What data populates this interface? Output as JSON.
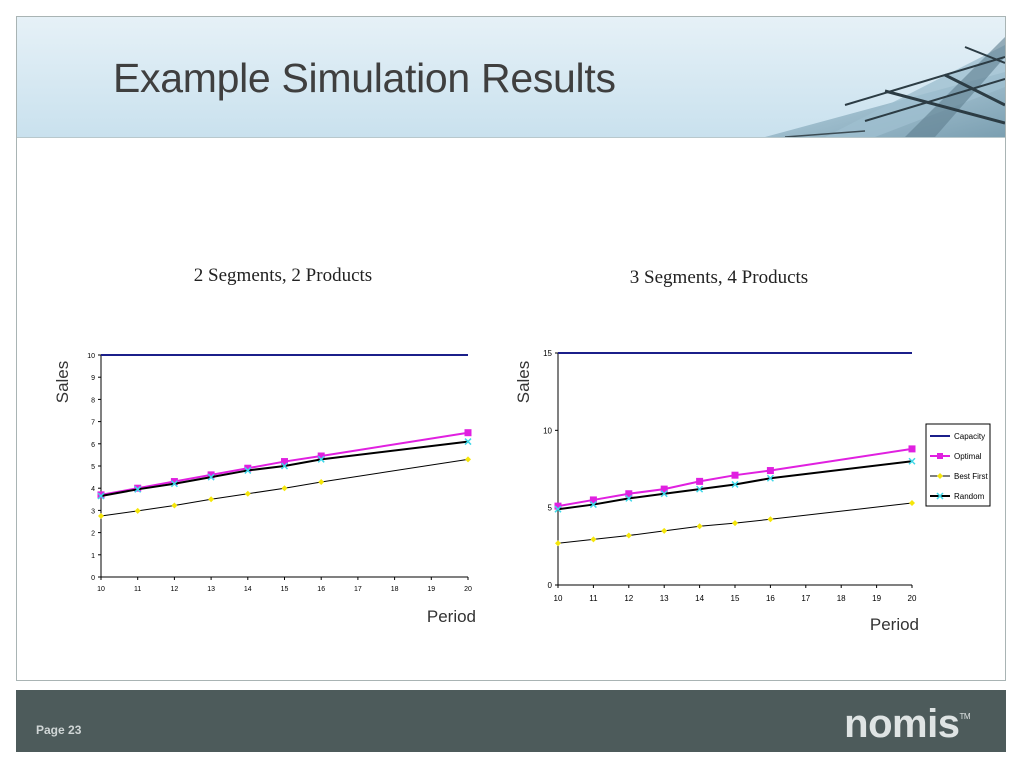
{
  "slide": {
    "title": "Example Simulation Results",
    "page_label": "Page 23",
    "logo_text": "nomis",
    "logo_mark": "TM"
  },
  "colors": {
    "capacity": "#1b1f8a",
    "optimal": "#e020e0",
    "best_first": "#f5e60a",
    "random": "#000000",
    "random_marker": "#3fd8e8",
    "footer": "#4d5b5b",
    "title": "#3f3f3f"
  },
  "legend": [
    "Capacity",
    "Optimal",
    "Best First",
    "Random"
  ],
  "chart_data": [
    {
      "type": "line",
      "title": "2 Segments, 2 Products",
      "xlabel": "Period",
      "ylabel": "Sales",
      "x": [
        10,
        11,
        12,
        13,
        14,
        15,
        16,
        17,
        18,
        19,
        20
      ],
      "xlim": [
        10,
        20
      ],
      "ylim": [
        0,
        10
      ],
      "yticks": [
        0,
        1,
        2,
        3,
        4,
        5,
        6,
        7,
        8,
        9,
        10
      ],
      "legend": "none",
      "series": [
        {
          "name": "Capacity",
          "x": [
            10,
            20
          ],
          "values": [
            10,
            10
          ],
          "marker": "none"
        },
        {
          "name": "Optimal",
          "x": [
            10,
            11,
            12,
            13,
            14,
            15,
            16,
            20
          ],
          "values": [
            3.7,
            4.0,
            4.3,
            4.6,
            4.9,
            5.2,
            5.45,
            6.5
          ],
          "marker": "square"
        },
        {
          "name": "Best First",
          "x": [
            10,
            11,
            12,
            13,
            14,
            15,
            16,
            20
          ],
          "values": [
            2.75,
            2.98,
            3.22,
            3.5,
            3.75,
            4.0,
            4.28,
            5.3
          ],
          "marker": "diamond"
        },
        {
          "name": "Random",
          "x": [
            10,
            11,
            12,
            13,
            14,
            15,
            16,
            20
          ],
          "values": [
            3.65,
            3.95,
            4.2,
            4.5,
            4.8,
            5.0,
            5.3,
            6.1
          ],
          "marker": "x"
        }
      ]
    },
    {
      "type": "line",
      "title": "3 Segments, 4 Products",
      "xlabel": "Period",
      "ylabel": "Sales",
      "x": [
        10,
        11,
        12,
        13,
        14,
        15,
        16,
        17,
        18,
        19,
        20
      ],
      "xlim": [
        10,
        20
      ],
      "ylim": [
        0,
        15
      ],
      "yticks": [
        0,
        5,
        10,
        15
      ],
      "legend": "right",
      "series": [
        {
          "name": "Capacity",
          "x": [
            10,
            20
          ],
          "values": [
            15,
            15
          ],
          "marker": "none"
        },
        {
          "name": "Optimal",
          "x": [
            10,
            11,
            12,
            13,
            14,
            15,
            16,
            20
          ],
          "values": [
            5.1,
            5.5,
            5.9,
            6.2,
            6.7,
            7.1,
            7.4,
            8.8
          ],
          "marker": "square"
        },
        {
          "name": "Best First",
          "x": [
            10,
            11,
            12,
            13,
            14,
            15,
            16,
            20
          ],
          "values": [
            2.7,
            2.95,
            3.2,
            3.5,
            3.8,
            4.0,
            4.25,
            5.3
          ],
          "marker": "diamond"
        },
        {
          "name": "Random",
          "x": [
            10,
            11,
            12,
            13,
            14,
            15,
            16,
            20
          ],
          "values": [
            4.9,
            5.2,
            5.6,
            5.9,
            6.2,
            6.5,
            6.9,
            8.0
          ],
          "marker": "x"
        }
      ]
    }
  ]
}
